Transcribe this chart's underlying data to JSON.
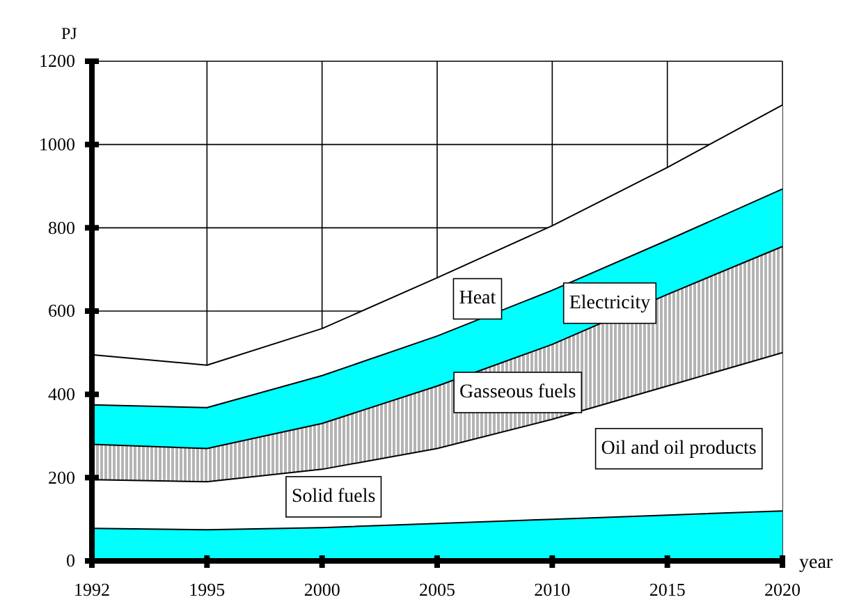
{
  "chart_data": {
    "type": "area",
    "stacked": true,
    "xlabel": "year",
    "ylabel": "PJ",
    "categories": [
      "1992",
      "1995",
      "2000",
      "2005",
      "2010",
      "2015",
      "2020"
    ],
    "ylim": [
      0,
      1200
    ],
    "yticks": [
      0,
      200,
      400,
      600,
      800,
      1000,
      1200
    ],
    "grid": true,
    "legend": false,
    "series": [
      {
        "name": "Solid fuels",
        "color": "#00ffff",
        "values": [
          78,
          75,
          80,
          90,
          100,
          110,
          120
        ]
      },
      {
        "name": "Oil and oil products",
        "color": "#ffffff",
        "values": [
          117,
          115,
          140,
          180,
          240,
          310,
          380
        ]
      },
      {
        "name": "Gasseous fuels",
        "color": "#b4b4b4",
        "values": [
          85,
          80,
          110,
          150,
          180,
          220,
          255
        ]
      },
      {
        "name": "Electricity",
        "color": "#00ffff",
        "values": [
          95,
          98,
          115,
          120,
          130,
          130,
          138
        ]
      },
      {
        "name": "Heat",
        "color": "#ffffff",
        "values": [
          120,
          102,
          113,
          140,
          155,
          175,
          202
        ]
      }
    ]
  }
}
